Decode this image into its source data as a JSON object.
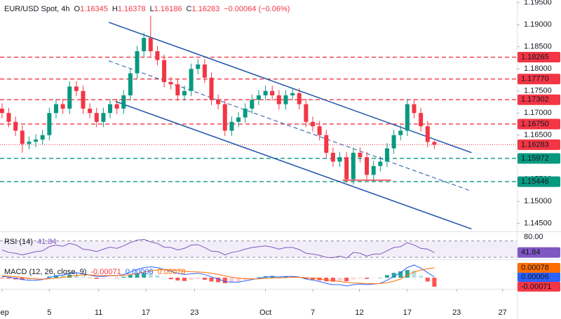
{
  "chart_data": {
    "type": "candlestick",
    "symbol": "EUR/USD Spot, 4h",
    "ohlc_legend": [
      {
        "key": "O",
        "value": "1.16345"
      },
      {
        "key": "H",
        "value": "1.16378"
      },
      {
        "key": "L",
        "value": "1.16186"
      },
      {
        "key": "C",
        "value": "1.16283"
      }
    ],
    "change": "−0.00064 (−0.06%)",
    "up_color": "#089981",
    "down_color": "#f23645",
    "x": [
      0,
      1,
      2,
      3,
      4,
      5,
      6,
      7,
      8,
      9,
      10,
      11,
      12,
      13,
      14,
      15,
      16,
      17,
      18,
      19,
      20,
      21,
      22,
      23,
      24,
      25,
      26,
      27,
      28,
      29,
      30,
      31,
      32,
      33,
      34,
      35,
      36,
      37,
      38,
      39,
      40,
      41,
      42,
      43,
      44,
      45,
      46,
      47,
      48,
      49,
      50,
      51,
      52,
      53,
      54,
      55,
      56,
      57,
      58,
      59,
      60,
      61,
      62,
      63,
      64
    ],
    "open": [
      1.171,
      1.17,
      1.168,
      1.166,
      1.163,
      1.1635,
      1.164,
      1.165,
      1.17,
      1.172,
      1.171,
      1.176,
      1.175,
      1.171,
      1.17,
      1.168,
      1.17,
      1.172,
      1.171,
      1.174,
      1.179,
      1.184,
      1.187,
      1.184,
      1.182,
      1.177,
      1.1765,
      1.174,
      1.175,
      1.18,
      1.181,
      1.178,
      1.173,
      1.172,
      1.166,
      1.168,
      1.169,
      1.171,
      1.173,
      1.174,
      1.175,
      1.174,
      1.172,
      1.174,
      1.1745,
      1.172,
      1.168,
      1.167,
      1.165,
      1.161,
      1.159,
      1.16,
      1.155,
      1.161,
      1.16,
      1.156,
      1.158,
      1.159,
      1.162,
      1.165,
      1.166,
      1.172,
      1.17,
      1.167,
      1.16345
    ],
    "high": [
      1.1722,
      1.1712,
      1.1692,
      1.1672,
      1.1647,
      1.1652,
      1.1662,
      1.1712,
      1.1732,
      1.1732,
      1.1772,
      1.1772,
      1.1762,
      1.1722,
      1.1712,
      1.1712,
      1.1732,
      1.1732,
      1.1752,
      1.1802,
      1.1852,
      1.1882,
      1.192,
      1.1852,
      1.1832,
      1.1782,
      1.1777,
      1.1762,
      1.1812,
      1.1822,
      1.1822,
      1.1792,
      1.1742,
      1.1732,
      1.1692,
      1.1702,
      1.1722,
      1.1742,
      1.1752,
      1.1762,
      1.1762,
      1.1752,
      1.1752,
      1.1757,
      1.1757,
      1.1732,
      1.1692,
      1.1682,
      1.1662,
      1.1622,
      1.1612,
      1.1612,
      1.1622,
      1.1622,
      1.1612,
      1.1592,
      1.1602,
      1.1632,
      1.1662,
      1.1672,
      1.1732,
      1.1732,
      1.1712,
      1.1682,
      1.16378
    ],
    "low": [
      1.1688,
      1.1668,
      1.1648,
      1.161,
      1.1618,
      1.1623,
      1.1628,
      1.1638,
      1.1688,
      1.1698,
      1.1698,
      1.1738,
      1.1698,
      1.1688,
      1.1668,
      1.1668,
      1.1688,
      1.1698,
      1.1698,
      1.1728,
      1.1778,
      1.1828,
      1.1828,
      1.1808,
      1.1758,
      1.1753,
      1.1728,
      1.1728,
      1.1738,
      1.1788,
      1.1768,
      1.1718,
      1.1708,
      1.1648,
      1.1648,
      1.1668,
      1.1678,
      1.1698,
      1.1718,
      1.1728,
      1.1728,
      1.1708,
      1.1708,
      1.1728,
      1.1708,
      1.1668,
      1.1658,
      1.1638,
      1.1598,
      1.1578,
      1.1578,
      1.1542,
      1.1538,
      1.1588,
      1.1548,
      1.1545,
      1.1568,
      1.1578,
      1.1608,
      1.1638,
      1.1648,
      1.1688,
      1.1658,
      1.1622,
      1.16186
    ],
    "close": [
      1.17,
      1.168,
      1.166,
      1.163,
      1.1635,
      1.164,
      1.165,
      1.17,
      1.172,
      1.171,
      1.176,
      1.175,
      1.171,
      1.17,
      1.168,
      1.17,
      1.172,
      1.171,
      1.174,
      1.179,
      1.184,
      1.187,
      1.184,
      1.182,
      1.177,
      1.1765,
      1.174,
      1.175,
      1.18,
      1.181,
      1.178,
      1.173,
      1.172,
      1.166,
      1.168,
      1.169,
      1.171,
      1.173,
      1.174,
      1.175,
      1.174,
      1.172,
      1.174,
      1.1745,
      1.172,
      1.168,
      1.167,
      1.165,
      1.161,
      1.159,
      1.16,
      1.155,
      1.161,
      1.16,
      1.156,
      1.158,
      1.159,
      1.162,
      1.165,
      1.166,
      1.172,
      1.17,
      1.167,
      1.16345,
      1.16283
    ],
    "xlim": [
      -0.3,
      76
    ],
    "xticks": [
      {
        "value": 0,
        "label": "Sep"
      },
      {
        "value": 7,
        "label": "5"
      },
      {
        "value": 14.3,
        "label": "11"
      },
      {
        "value": 21.3,
        "label": "17"
      },
      {
        "value": 28.5,
        "label": "23"
      },
      {
        "value": 39,
        "label": "Oct"
      },
      {
        "value": 46,
        "label": "7"
      },
      {
        "value": 52.9,
        "label": "12"
      },
      {
        "value": 60,
        "label": "17"
      },
      {
        "value": 67.3,
        "label": "23"
      },
      {
        "value": 74.1,
        "label": "27"
      }
    ],
    "ylim": [
      1.1432,
      1.1956
    ],
    "yticks": [
      {
        "value": 1.145,
        "label": "1.14500"
      },
      {
        "value": 1.15,
        "label": "1.15000"
      },
      {
        "value": 1.155,
        "label": "1.15500"
      },
      {
        "value": 1.16,
        "label": "1.16000"
      },
      {
        "value": 1.165,
        "label": "1.16500"
      },
      {
        "value": 1.17,
        "label": "1.17000"
      },
      {
        "value": 1.175,
        "label": "1.17500"
      },
      {
        "value": 1.18,
        "label": "1.18000"
      },
      {
        "value": 1.185,
        "label": "1.18500"
      },
      {
        "value": 1.19,
        "label": "1.19000"
      },
      {
        "value": 1.195,
        "label": "1.19500"
      }
    ],
    "levels": [
      {
        "value": 1.18265,
        "color": "#f23645",
        "style": "dashed"
      },
      {
        "value": 1.1777,
        "label": "1.17770",
        "color": "#f23645",
        "style": "dashed"
      },
      {
        "value": 1.17302,
        "color": "#f23645",
        "style": "dashed"
      },
      {
        "value": 1.1675,
        "label": "1.16750",
        "color": "#f23645",
        "style": "dashed"
      },
      {
        "value": 1.16283,
        "color": "#f23645",
        "style": "dotted"
      },
      {
        "value": 1.15972,
        "color": "#089981",
        "style": "dashed"
      },
      {
        "value": 1.15446,
        "color": "#089981",
        "style": "dashed"
      }
    ],
    "trendlines": [
      {
        "x": [
          15.8,
          69.5
        ],
        "y": [
          1.19055,
          1.16103
        ],
        "color": "#1e53a8",
        "style": "solid"
      },
      {
        "x": [
          15.8,
          69.5
        ],
        "y": [
          1.18182,
          1.1523
        ],
        "color": "#1e53a8",
        "style": "dashed"
      },
      {
        "x": [
          16.8,
          69.5
        ],
        "y": [
          1.17262,
          1.14374
        ],
        "color": "#1e53a8",
        "style": "solid"
      },
      {
        "x": [
          50.4,
          57.6
        ],
        "y": [
          1.1548,
          1.1548
        ],
        "color": "#f23645",
        "style": "solid"
      }
    ],
    "rsi": {
      "name": "RSI (14)",
      "color": "#7e57c2",
      "values": [
        48,
        42,
        40,
        36,
        40,
        44,
        46,
        56,
        60,
        57,
        64,
        60,
        50,
        48,
        44,
        50,
        55,
        52,
        58,
        66,
        72,
        74,
        68,
        64,
        55,
        54,
        48,
        52,
        60,
        61,
        54,
        45,
        44,
        36,
        42,
        45,
        50,
        54,
        56,
        58,
        55,
        50,
        54,
        54,
        49,
        40,
        38,
        35,
        30,
        29,
        33,
        28,
        42,
        40,
        33,
        38,
        38,
        46,
        54,
        56,
        66,
        60,
        52,
        50,
        41.84
      ],
      "band": [
        30,
        70
      ],
      "ylim": [
        25,
        90
      ],
      "yticks": [
        {
          "value": 80,
          "label": "80.00"
        }
      ]
    },
    "macd": {
      "name": "MACD (12, 26, close, 9)",
      "ylim": [
        -0.00088,
        0.00133
      ],
      "histogram": {
        "color": "#f23645",
        "values": [
          -5e-05,
          -7e-05,
          -0.00013,
          -0.00017,
          -0.00015,
          -0.0001,
          -3e-05,
          9e-05,
          0.00019,
          0.00018,
          0.00025,
          0.00022,
          8e-05,
          -2e-05,
          -9e-05,
          -7e-05,
          -1e-05,
          -1e-05,
          7e-05,
          0.00021,
          0.00032,
          0.00036,
          0.00031,
          0.00019,
          2e-05,
          -0.00012,
          -0.00022,
          -0.00026,
          -0.00017,
          -0.0001,
          -0.00017,
          -0.0003,
          -0.00036,
          -0.00044,
          -0.00039,
          -0.00031,
          -0.00017,
          -5e-05,
          4e-05,
          0.00011,
          0.00013,
          6e-05,
          9e-05,
          7e-05,
          2e-05,
          -0.0001,
          -0.00016,
          -0.00021,
          -0.00029,
          -0.00031,
          -0.00025,
          -0.00028,
          -0.00014,
          -7e-05,
          -9e-05,
          -3e-05,
          1e-05,
          0.0002,
          0.00038,
          0.0005,
          0.0006,
          0.00055,
          0.00015,
          -0.0003,
          -0.00071
        ]
      },
      "macd": {
        "color": "#2962ff",
        "values": [
          0.0001,
          5e-05,
          -5e-05,
          -0.00015,
          -0.0002,
          -0.0002,
          -0.00015,
          0,
          0.00015,
          0.0002,
          0.00035,
          0.0004,
          0.0003,
          0.0002,
          0.0001,
          0.0001,
          0.00015,
          0.00015,
          0.00025,
          0.00045,
          0.00065,
          0.0008,
          0.00085,
          0.0008,
          0.00065,
          0.0005,
          0.00035,
          0.00025,
          0.0003,
          0.00035,
          0.00025,
          5e-05,
          -0.0001,
          -0.0003,
          -0.00035,
          -0.00035,
          -0.00025,
          -0.00015,
          -5e-05,
          5e-05,
          0.0001,
          5e-05,
          0.0001,
          0.0001,
          5e-05,
          -0.0001,
          -0.0002,
          -0.0003,
          -0.00045,
          -0.00055,
          -0.00055,
          -0.00065,
          -0.00055,
          -0.0005,
          -0.00055,
          -0.0005,
          -0.00045,
          -0.0002,
          0.0001,
          0.0004,
          0.0008,
          0.001,
          0.00075,
          0.0004,
          6e-05
        ]
      },
      "signal": {
        "color": "#ff6d00",
        "values": [
          0.00015,
          0.00012,
          8e-05,
          2e-05,
          -5e-05,
          -0.0001,
          -0.00012,
          -9e-05,
          -4e-05,
          2e-05,
          0.0001,
          0.00018,
          0.00022,
          0.00022,
          0.00019,
          0.00017,
          0.00016,
          0.00016,
          0.00018,
          0.00024,
          0.00033,
          0.00044,
          0.00054,
          0.00061,
          0.00063,
          0.00062,
          0.00057,
          0.00051,
          0.00047,
          0.00045,
          0.00042,
          0.00035,
          0.00026,
          0.00014,
          4e-05,
          -4e-05,
          -8e-05,
          -0.0001,
          -9e-05,
          -6e-05,
          -3e-05,
          -1e-05,
          1e-05,
          3e-05,
          3e-05,
          0,
          -4e-05,
          -9e-05,
          -0.00016,
          -0.00024,
          -0.0003,
          -0.00037,
          -0.00041,
          -0.00043,
          -0.00046,
          -0.00047,
          -0.00046,
          -0.0004,
          -0.00028,
          -0.0001,
          0.0002,
          0.00045,
          0.0006,
          0.0007,
          0.00078
        ]
      }
    }
  }
}
